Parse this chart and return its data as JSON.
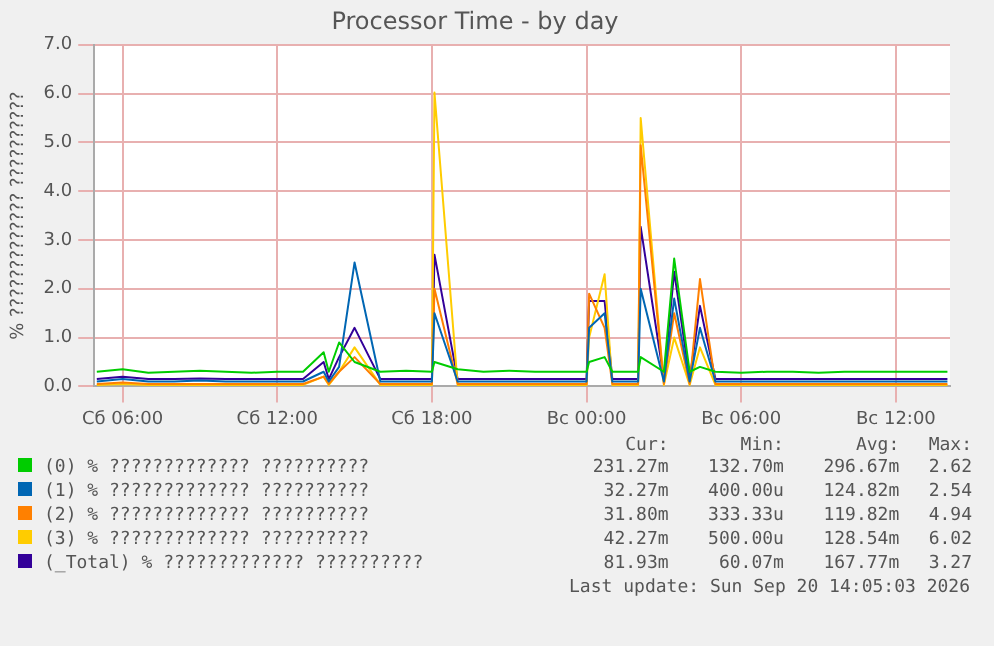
{
  "chart_data": {
    "type": "line",
    "title": "Processor Time - by day",
    "ylabel": "% ????????????? ??????????",
    "x": [
      "2026-09-19T05:00",
      "2026-09-19T06:00",
      "2026-09-19T07:00",
      "2026-09-19T08:00",
      "2026-09-19T09:00",
      "2026-09-19T10:00",
      "2026-09-19T11:00",
      "2026-09-19T12:00",
      "2026-09-19T13:00",
      "2026-09-19T13:48",
      "2026-09-19T14:00",
      "2026-09-19T14:24",
      "2026-09-19T15:00",
      "2026-09-19T16:00",
      "2026-09-19T17:00",
      "2026-09-19T18:00",
      "2026-09-19T18:06",
      "2026-09-19T19:00",
      "2026-09-19T20:00",
      "2026-09-19T21:00",
      "2026-09-19T22:00",
      "2026-09-19T23:00",
      "2026-09-20T00:00",
      "2026-09-20T00:06",
      "2026-09-20T00:42",
      "2026-09-20T01:00",
      "2026-09-20T02:00",
      "2026-09-20T02:06",
      "2026-09-20T03:00",
      "2026-09-20T03:24",
      "2026-09-20T04:00",
      "2026-09-20T04:24",
      "2026-09-20T05:00",
      "2026-09-20T06:00",
      "2026-09-20T07:00",
      "2026-09-20T08:00",
      "2026-09-20T09:00",
      "2026-09-20T10:00",
      "2026-09-20T11:00",
      "2026-09-20T12:00",
      "2026-09-20T13:00",
      "2026-09-20T14:00"
    ],
    "xlim": [
      "2026-09-19T04:54",
      "2026-09-20T14:06"
    ],
    "xticks": [
      {
        "value": "2026-09-19T06:00",
        "label": "Сб 06:00"
      },
      {
        "value": "2026-09-19T12:00",
        "label": "Сб 12:00"
      },
      {
        "value": "2026-09-19T18:00",
        "label": "Сб 18:00"
      },
      {
        "value": "2026-09-20T00:00",
        "label": "Вс 00:00"
      },
      {
        "value": "2026-09-20T06:00",
        "label": "Вс 06:00"
      },
      {
        "value": "2026-09-20T12:00",
        "label": "Вс 12:00"
      }
    ],
    "ylim": [
      0,
      7
    ],
    "yticks": [
      {
        "value": 0,
        "label": "0.0"
      },
      {
        "value": 1,
        "label": "1.0"
      },
      {
        "value": 2,
        "label": "2.0"
      },
      {
        "value": 3,
        "label": "3.0"
      },
      {
        "value": 4,
        "label": "4.0"
      },
      {
        "value": 5,
        "label": "5.0"
      },
      {
        "value": 6,
        "label": "6.0"
      },
      {
        "value": 7,
        "label": "7.0"
      }
    ],
    "grid": true,
    "legend": "bottom",
    "marker": "none",
    "line_style": "solid",
    "series": [
      {
        "name": "(0) % ????????????? ??????????",
        "color": "#00cc00",
        "values": [
          0.3,
          0.35,
          0.28,
          0.3,
          0.32,
          0.3,
          0.28,
          0.3,
          0.3,
          0.7,
          0.3,
          0.9,
          0.5,
          0.3,
          0.32,
          0.3,
          0.5,
          0.35,
          0.3,
          0.32,
          0.3,
          0.3,
          0.3,
          0.5,
          0.6,
          0.3,
          0.3,
          0.6,
          0.3,
          2.62,
          0.3,
          0.4,
          0.3,
          0.28,
          0.3,
          0.3,
          0.28,
          0.3,
          0.3,
          0.3,
          0.3,
          0.3
        ]
      },
      {
        "name": "(1) % ????????????? ??????????",
        "color": "#0066b3",
        "values": [
          0.1,
          0.15,
          0.1,
          0.1,
          0.12,
          0.1,
          0.1,
          0.1,
          0.1,
          0.3,
          0.1,
          0.4,
          2.54,
          0.1,
          0.1,
          0.1,
          1.5,
          0.1,
          0.1,
          0.1,
          0.1,
          0.1,
          0.1,
          1.2,
          1.5,
          0.1,
          0.1,
          2.0,
          0.1,
          1.8,
          0.1,
          1.2,
          0.1,
          0.1,
          0.1,
          0.1,
          0.1,
          0.1,
          0.1,
          0.1,
          0.1,
          0.1
        ]
      },
      {
        "name": "(2) % ????????????? ??????????",
        "color": "#ff8000",
        "values": [
          0.05,
          0.08,
          0.05,
          0.05,
          0.05,
          0.05,
          0.05,
          0.05,
          0.05,
          0.2,
          0.05,
          0.3,
          0.6,
          0.05,
          0.05,
          0.05,
          2.0,
          0.05,
          0.05,
          0.05,
          0.05,
          0.05,
          0.05,
          1.9,
          1.2,
          0.05,
          0.05,
          4.94,
          0.05,
          1.5,
          0.05,
          2.2,
          0.05,
          0.05,
          0.05,
          0.05,
          0.05,
          0.05,
          0.05,
          0.05,
          0.05,
          0.05
        ]
      },
      {
        "name": "(3) % ????????????? ??????????",
        "color": "#ffcc00",
        "values": [
          0.03,
          0.05,
          0.03,
          0.03,
          0.03,
          0.03,
          0.03,
          0.03,
          0.03,
          0.2,
          0.03,
          0.3,
          0.8,
          0.03,
          0.03,
          0.03,
          6.02,
          0.03,
          0.03,
          0.03,
          0.03,
          0.03,
          0.03,
          1.0,
          2.3,
          0.03,
          0.03,
          5.5,
          0.03,
          1.0,
          0.03,
          0.8,
          0.03,
          0.03,
          0.03,
          0.03,
          0.03,
          0.03,
          0.03,
          0.03,
          0.03,
          0.03
        ]
      },
      {
        "name": "(_Total) % ????????????? ??????????",
        "color": "#330099",
        "values": [
          0.15,
          0.2,
          0.15,
          0.15,
          0.16,
          0.15,
          0.15,
          0.15,
          0.15,
          0.5,
          0.15,
          0.6,
          1.2,
          0.15,
          0.15,
          0.15,
          2.7,
          0.15,
          0.15,
          0.15,
          0.15,
          0.15,
          0.15,
          1.75,
          1.75,
          0.15,
          0.15,
          3.27,
          0.15,
          2.35,
          0.15,
          1.65,
          0.15,
          0.15,
          0.15,
          0.15,
          0.15,
          0.15,
          0.15,
          0.15,
          0.15,
          0.15
        ]
      }
    ],
    "annotations": [
      "Cur:",
      "Min:",
      "Avg:",
      "Max:",
      "231.27m",
      "132.70m",
      "296.67m",
      "2.62",
      "32.27m",
      "400.00u",
      "124.82m",
      "2.54",
      "31.80m",
      "333.33u",
      "119.82m",
      "4.94",
      "42.27m",
      "500.00u",
      "128.54m",
      "6.02",
      "81.93m",
      "60.07m",
      "167.77m",
      "3.27",
      "Last update: Sun Sep 20 14:05:03 2026"
    ]
  }
}
